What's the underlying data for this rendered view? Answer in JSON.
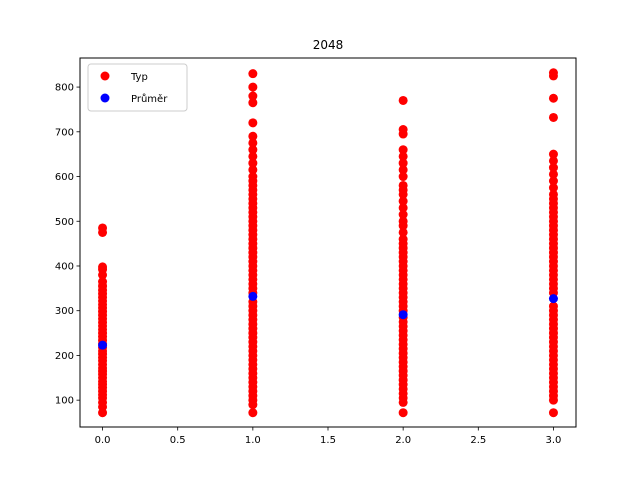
{
  "chart_data": {
    "type": "scatter",
    "title": "2048",
    "xlabel": "",
    "ylabel": "",
    "xlim": [
      -0.15,
      3.15
    ],
    "ylim": [
      40,
      865
    ],
    "x_ticks": [
      0.0,
      0.5,
      1.0,
      1.5,
      2.0,
      2.5,
      3.0
    ],
    "x_tick_labels": [
      "0.0",
      "0.5",
      "1.0",
      "1.5",
      "2.0",
      "2.5",
      "3.0"
    ],
    "y_ticks": [
      100,
      200,
      300,
      400,
      500,
      600,
      700,
      800
    ],
    "y_tick_labels": [
      "100",
      "200",
      "300",
      "400",
      "500",
      "600",
      "700",
      "800"
    ],
    "grid": false,
    "legend_position": "top-left",
    "series": [
      {
        "name": "Typ",
        "color": "#ff0000",
        "points": [
          [
            0,
            72
          ],
          [
            0,
            85
          ],
          [
            0,
            95
          ],
          [
            0,
            105
          ],
          [
            0,
            112
          ],
          [
            0,
            120
          ],
          [
            0,
            128
          ],
          [
            0,
            135
          ],
          [
            0,
            142
          ],
          [
            0,
            150
          ],
          [
            0,
            158
          ],
          [
            0,
            165
          ],
          [
            0,
            172
          ],
          [
            0,
            180
          ],
          [
            0,
            188
          ],
          [
            0,
            195
          ],
          [
            0,
            203
          ],
          [
            0,
            210
          ],
          [
            0,
            218
          ],
          [
            0,
            226
          ],
          [
            0,
            234
          ],
          [
            0,
            242
          ],
          [
            0,
            250
          ],
          [
            0,
            258
          ],
          [
            0,
            266
          ],
          [
            0,
            274
          ],
          [
            0,
            282
          ],
          [
            0,
            290
          ],
          [
            0,
            298
          ],
          [
            0,
            306
          ],
          [
            0,
            314
          ],
          [
            0,
            322
          ],
          [
            0,
            330
          ],
          [
            0,
            338
          ],
          [
            0,
            346
          ],
          [
            0,
            355
          ],
          [
            0,
            365
          ],
          [
            0,
            380
          ],
          [
            0,
            392
          ],
          [
            0,
            398
          ],
          [
            0,
            475
          ],
          [
            0,
            485
          ],
          [
            1,
            72
          ],
          [
            1,
            90
          ],
          [
            1,
            100
          ],
          [
            1,
            110
          ],
          [
            1,
            120
          ],
          [
            1,
            130
          ],
          [
            1,
            140
          ],
          [
            1,
            150
          ],
          [
            1,
            160
          ],
          [
            1,
            170
          ],
          [
            1,
            180
          ],
          [
            1,
            190
          ],
          [
            1,
            200
          ],
          [
            1,
            210
          ],
          [
            1,
            220
          ],
          [
            1,
            230
          ],
          [
            1,
            240
          ],
          [
            1,
            250
          ],
          [
            1,
            260
          ],
          [
            1,
            270
          ],
          [
            1,
            280
          ],
          [
            1,
            290
          ],
          [
            1,
            300
          ],
          [
            1,
            310
          ],
          [
            1,
            320
          ],
          [
            1,
            340
          ],
          [
            1,
            350
          ],
          [
            1,
            360
          ],
          [
            1,
            370
          ],
          [
            1,
            380
          ],
          [
            1,
            390
          ],
          [
            1,
            400
          ],
          [
            1,
            410
          ],
          [
            1,
            420
          ],
          [
            1,
            430
          ],
          [
            1,
            440
          ],
          [
            1,
            450
          ],
          [
            1,
            460
          ],
          [
            1,
            470
          ],
          [
            1,
            480
          ],
          [
            1,
            490
          ],
          [
            1,
            500
          ],
          [
            1,
            510
          ],
          [
            1,
            520
          ],
          [
            1,
            530
          ],
          [
            1,
            540
          ],
          [
            1,
            550
          ],
          [
            1,
            560
          ],
          [
            1,
            570
          ],
          [
            1,
            580
          ],
          [
            1,
            590
          ],
          [
            1,
            600
          ],
          [
            1,
            615
          ],
          [
            1,
            630
          ],
          [
            1,
            645
          ],
          [
            1,
            660
          ],
          [
            1,
            675
          ],
          [
            1,
            690
          ],
          [
            1,
            720
          ],
          [
            1,
            765
          ],
          [
            1,
            780
          ],
          [
            1,
            800
          ],
          [
            1,
            830
          ],
          [
            2,
            72
          ],
          [
            2,
            95
          ],
          [
            2,
            105
          ],
          [
            2,
            115
          ],
          [
            2,
            125
          ],
          [
            2,
            135
          ],
          [
            2,
            145
          ],
          [
            2,
            155
          ],
          [
            2,
            165
          ],
          [
            2,
            175
          ],
          [
            2,
            185
          ],
          [
            2,
            195
          ],
          [
            2,
            205
          ],
          [
            2,
            215
          ],
          [
            2,
            225
          ],
          [
            2,
            235
          ],
          [
            2,
            245
          ],
          [
            2,
            255
          ],
          [
            2,
            265
          ],
          [
            2,
            275
          ],
          [
            2,
            285
          ],
          [
            2,
            300
          ],
          [
            2,
            310
          ],
          [
            2,
            320
          ],
          [
            2,
            330
          ],
          [
            2,
            340
          ],
          [
            2,
            350
          ],
          [
            2,
            360
          ],
          [
            2,
            370
          ],
          [
            2,
            380
          ],
          [
            2,
            390
          ],
          [
            2,
            400
          ],
          [
            2,
            410
          ],
          [
            2,
            420
          ],
          [
            2,
            430
          ],
          [
            2,
            440
          ],
          [
            2,
            450
          ],
          [
            2,
            460
          ],
          [
            2,
            475
          ],
          [
            2,
            490
          ],
          [
            2,
            500
          ],
          [
            2,
            515
          ],
          [
            2,
            530
          ],
          [
            2,
            545
          ],
          [
            2,
            560
          ],
          [
            2,
            570
          ],
          [
            2,
            580
          ],
          [
            2,
            600
          ],
          [
            2,
            615
          ],
          [
            2,
            630
          ],
          [
            2,
            645
          ],
          [
            2,
            660
          ],
          [
            2,
            695
          ],
          [
            2,
            705
          ],
          [
            2,
            770
          ],
          [
            3,
            72
          ],
          [
            3,
            100
          ],
          [
            3,
            110
          ],
          [
            3,
            120
          ],
          [
            3,
            130
          ],
          [
            3,
            140
          ],
          [
            3,
            150
          ],
          [
            3,
            160
          ],
          [
            3,
            170
          ],
          [
            3,
            180
          ],
          [
            3,
            190
          ],
          [
            3,
            200
          ],
          [
            3,
            210
          ],
          [
            3,
            220
          ],
          [
            3,
            230
          ],
          [
            3,
            240
          ],
          [
            3,
            250
          ],
          [
            3,
            260
          ],
          [
            3,
            270
          ],
          [
            3,
            280
          ],
          [
            3,
            290
          ],
          [
            3,
            300
          ],
          [
            3,
            310
          ],
          [
            3,
            340
          ],
          [
            3,
            350
          ],
          [
            3,
            360
          ],
          [
            3,
            370
          ],
          [
            3,
            380
          ],
          [
            3,
            390
          ],
          [
            3,
            400
          ],
          [
            3,
            410
          ],
          [
            3,
            420
          ],
          [
            3,
            430
          ],
          [
            3,
            440
          ],
          [
            3,
            450
          ],
          [
            3,
            460
          ],
          [
            3,
            470
          ],
          [
            3,
            480
          ],
          [
            3,
            490
          ],
          [
            3,
            500
          ],
          [
            3,
            510
          ],
          [
            3,
            520
          ],
          [
            3,
            530
          ],
          [
            3,
            540
          ],
          [
            3,
            550
          ],
          [
            3,
            560
          ],
          [
            3,
            575
          ],
          [
            3,
            590
          ],
          [
            3,
            605
          ],
          [
            3,
            620
          ],
          [
            3,
            635
          ],
          [
            3,
            650
          ],
          [
            3,
            732
          ],
          [
            3,
            775
          ],
          [
            3,
            825
          ],
          [
            3,
            832
          ]
        ]
      },
      {
        "name": "Průměr",
        "color": "#0000ff",
        "points": [
          [
            0,
            223
          ],
          [
            1,
            332
          ],
          [
            2,
            291
          ],
          [
            3,
            327
          ]
        ]
      }
    ]
  }
}
